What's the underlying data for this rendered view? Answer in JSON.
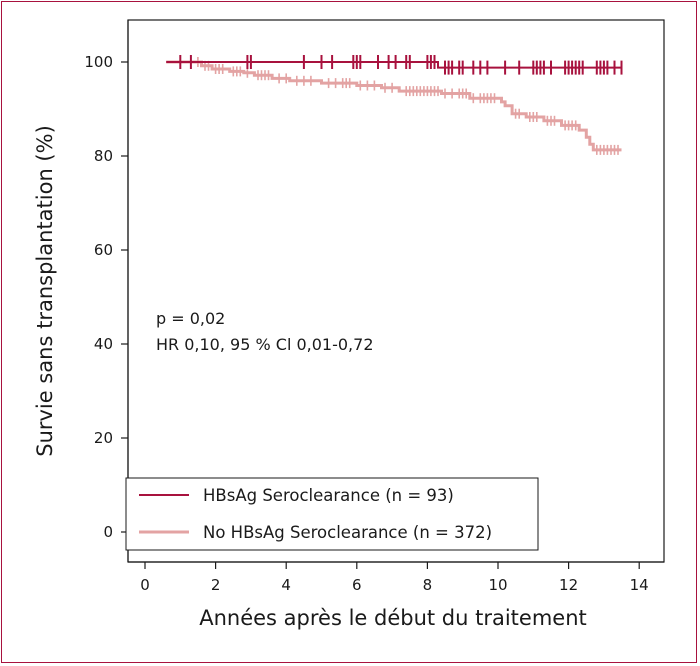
{
  "chart_data": {
    "type": "line",
    "subtype": "kaplan-meier",
    "title": "",
    "xlabel": "Années après le début du traitement",
    "ylabel": "Survie sans transplantation (%)",
    "xlim": [
      -0.5,
      14.5
    ],
    "ylim": [
      -6,
      105
    ],
    "x_ticks": [
      0,
      2,
      4,
      6,
      8,
      10,
      12,
      14
    ],
    "x_tick_labels": [
      "0",
      "2",
      "4",
      "6",
      "8",
      "10",
      "12",
      "14"
    ],
    "y_ticks": [
      0,
      20,
      40,
      60,
      80,
      100
    ],
    "y_tick_labels": [
      "0",
      "20",
      "40",
      "60",
      "80",
      "100"
    ],
    "grid": false,
    "legend_position": "bottom-left",
    "annotations": [
      "p = 0,02",
      "HR 0,10, 95 % Cl 0,01-0,72"
    ],
    "series": [
      {
        "name": "HBsAg Seroclearance (n = 93)",
        "color": "#a8123e",
        "steps": [
          [
            0.6,
            100
          ],
          [
            8.3,
            100
          ],
          [
            8.3,
            98.8
          ],
          [
            13.5,
            98.8
          ]
        ],
        "censors": [
          1.0,
          1.3,
          2.9,
          3.0,
          4.5,
          5.0,
          5.3,
          5.9,
          6.0,
          6.1,
          6.6,
          6.9,
          7.1,
          7.4,
          7.5,
          8.0,
          8.1,
          8.2,
          8.5,
          8.6,
          8.7,
          8.9,
          9.0,
          9.3,
          9.5,
          9.7,
          10.2,
          10.6,
          11.0,
          11.1,
          11.2,
          11.3,
          11.5,
          11.9,
          12.0,
          12.1,
          12.2,
          12.3,
          12.4,
          12.8,
          12.9,
          13.0,
          13.1,
          13.3,
          13.5
        ]
      },
      {
        "name": "No HBsAg Seroclearance (n = 372)",
        "color": "#e3a3a3",
        "steps": [
          [
            0.6,
            100
          ],
          [
            1.6,
            100
          ],
          [
            1.6,
            99.2
          ],
          [
            1.9,
            99.2
          ],
          [
            1.9,
            98.5
          ],
          [
            2.4,
            98.5
          ],
          [
            2.4,
            98.0
          ],
          [
            2.8,
            98.0
          ],
          [
            2.8,
            97.7
          ],
          [
            3.1,
            97.7
          ],
          [
            3.1,
            97.2
          ],
          [
            3.6,
            97.2
          ],
          [
            3.6,
            96.5
          ],
          [
            4.1,
            96.5
          ],
          [
            4.1,
            96.0
          ],
          [
            5.0,
            96.0
          ],
          [
            5.0,
            95.5
          ],
          [
            6.0,
            95.5
          ],
          [
            6.0,
            95.0
          ],
          [
            6.7,
            95.0
          ],
          [
            6.7,
            94.5
          ],
          [
            7.2,
            94.5
          ],
          [
            7.2,
            93.8
          ],
          [
            8.4,
            93.8
          ],
          [
            8.4,
            93.3
          ],
          [
            9.2,
            93.3
          ],
          [
            9.2,
            92.3
          ],
          [
            10.1,
            92.3
          ],
          [
            10.1,
            91.5
          ],
          [
            10.2,
            91.5
          ],
          [
            10.2,
            90.7
          ],
          [
            10.4,
            90.7
          ],
          [
            10.4,
            89.0
          ],
          [
            10.8,
            89.0
          ],
          [
            10.8,
            88.3
          ],
          [
            11.3,
            88.3
          ],
          [
            11.3,
            87.5
          ],
          [
            11.8,
            87.5
          ],
          [
            11.8,
            86.5
          ],
          [
            12.3,
            86.5
          ],
          [
            12.3,
            85.5
          ],
          [
            12.5,
            85.5
          ],
          [
            12.5,
            84.0
          ],
          [
            12.6,
            84.0
          ],
          [
            12.6,
            82.5
          ],
          [
            12.7,
            82.5
          ],
          [
            12.7,
            81.3
          ],
          [
            13.5,
            81.3
          ]
        ],
        "censors": [
          1.5,
          1.7,
          1.8,
          2.0,
          2.1,
          2.2,
          2.5,
          2.6,
          2.7,
          2.9,
          3.2,
          3.3,
          3.4,
          3.5,
          3.8,
          4.0,
          4.3,
          4.5,
          4.7,
          5.2,
          5.4,
          5.6,
          5.7,
          5.8,
          6.1,
          6.3,
          6.5,
          6.8,
          7.0,
          7.4,
          7.5,
          7.6,
          7.7,
          7.8,
          7.9,
          8.0,
          8.1,
          8.2,
          8.3,
          8.5,
          8.7,
          8.9,
          9.0,
          9.1,
          9.3,
          9.5,
          9.6,
          9.7,
          9.8,
          9.9,
          10.5,
          10.6,
          10.9,
          11.0,
          11.1,
          11.4,
          11.5,
          11.6,
          11.9,
          12.0,
          12.1,
          12.2,
          12.8,
          12.9,
          13.0,
          13.1,
          13.2,
          13.3,
          13.4
        ]
      }
    ]
  }
}
